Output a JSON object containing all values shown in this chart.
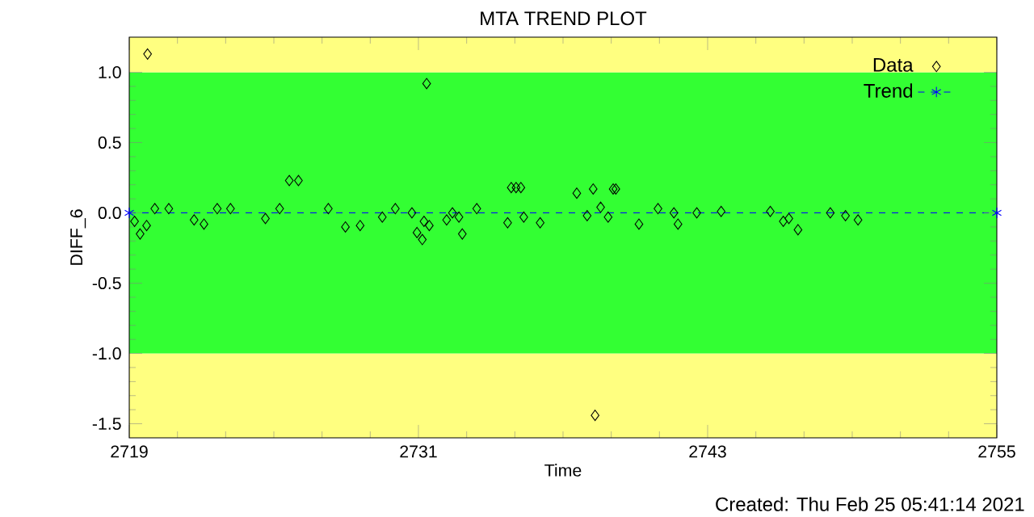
{
  "chart_data": {
    "type": "scatter",
    "title": "MTA TREND PLOT",
    "xlabel": "Time",
    "ylabel": "DIFF_6",
    "xlim": [
      2719,
      2755
    ],
    "xticks": [
      2719,
      2731,
      2743,
      2755
    ],
    "ylim": [
      -1.6,
      1.25
    ],
    "yticks": [
      -1.5,
      {
        "value": -1.0,
        "label": "-1.0"
      },
      -0.5,
      {
        "value": 0.0,
        "label": "0.0"
      },
      0.5,
      {
        "value": 1.0,
        "label": "1.0"
      }
    ],
    "bands": [
      {
        "axis": "y",
        "from": -1.6,
        "to": -1.0,
        "color": "#ffff80"
      },
      {
        "axis": "y",
        "from": -1.0,
        "to": 1.0,
        "color": "#33ff33"
      },
      {
        "axis": "y",
        "from": 1.0,
        "to": 1.25,
        "color": "#ffff80"
      }
    ],
    "legend": "top right",
    "grid": false,
    "series": [
      {
        "name": "Data",
        "type": "scatter",
        "color": "#000000",
        "marker": "diamond",
        "x": [
          2719.76,
          2719.22,
          2719.45,
          2719.72,
          2720.06,
          2720.64,
          2721.69,
          2722.1,
          2722.65,
          2723.2,
          2724.65,
          2725.24,
          2725.64,
          2726.02,
          2727.26,
          2727.97,
          2728.58,
          2729.5,
          2730.04,
          2730.73,
          2731.34,
          2730.94,
          2731.16,
          2731.23,
          2731.45,
          2732.17,
          2732.41,
          2732.68,
          2732.82,
          2733.42,
          2734.85,
          2735.05,
          2735.25,
          2734.7,
          2735.37,
          2736.05,
          2737.57,
          2738.0,
          2738.25,
          2738.56,
          2738.87,
          2739.08,
          2739.19,
          2740.15,
          2740.94,
          2741.6,
          2741.77,
          2742.55,
          2743.56,
          2745.6,
          2746.14,
          2746.37,
          2746.75,
          2748.09,
          2748.72,
          2749.24,
          2738.33
        ],
        "values": [
          1.13,
          -0.06,
          -0.15,
          -0.09,
          0.03,
          0.03,
          -0.05,
          -0.08,
          0.03,
          0.03,
          -0.04,
          0.03,
          0.23,
          0.23,
          0.03,
          -0.1,
          -0.09,
          -0.03,
          0.03,
          0.0,
          0.92,
          -0.14,
          -0.19,
          -0.06,
          -0.09,
          -0.05,
          0.0,
          -0.03,
          -0.15,
          0.03,
          0.18,
          0.18,
          0.18,
          -0.07,
          -0.03,
          -0.07,
          0.14,
          -0.02,
          0.17,
          0.04,
          -0.03,
          0.17,
          0.17,
          -0.08,
          0.03,
          0.0,
          -0.08,
          0.0,
          0.01,
          0.01,
          -0.06,
          -0.04,
          -0.12,
          0.0,
          -0.02,
          -0.05,
          -1.44
        ]
      },
      {
        "name": "Trend",
        "type": "line",
        "color": "#0000ff",
        "marker": "cross",
        "line_style": "dashed",
        "x": [
          2719,
          2755
        ],
        "values": [
          0.0,
          0.0
        ]
      }
    ],
    "annotations": [
      "Created: Thu Feb 25 05:41:14 2021"
    ]
  }
}
